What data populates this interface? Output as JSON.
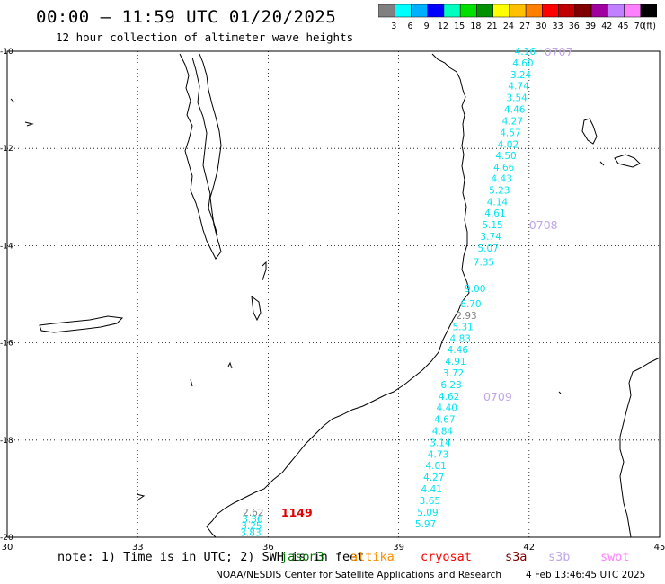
{
  "header": {
    "title": "00:00 – 11:59 UTC 01/20/2025",
    "subtitle": "12 hour collection of altimeter wave heights"
  },
  "scale": {
    "unit": "(ft)",
    "colors": [
      "#808080",
      "#00ffff",
      "#00b0ff",
      "#0000ff",
      "#00ffc0",
      "#00e000",
      "#009000",
      "#ffff00",
      "#ffc000",
      "#ff8000",
      "#ff0000",
      "#c00000",
      "#800000",
      "#a000a0",
      "#c080ff",
      "#ff80ff",
      "#000000"
    ],
    "labels": [
      "3",
      "6",
      "9",
      "12",
      "15",
      "18",
      "21",
      "24",
      "27",
      "30",
      "33",
      "36",
      "39",
      "42",
      "45",
      "70"
    ]
  },
  "axes": {
    "lon_ticks": [
      "30",
      "33",
      "36",
      "39",
      "42",
      "45"
    ],
    "lat_ticks": [
      "-10",
      "-12",
      "-14",
      "-16",
      "-18",
      "-20"
    ],
    "lon_range": [
      30,
      45
    ],
    "lat_range": [
      -20,
      -10
    ]
  },
  "tracks": [
    {
      "label": "0707",
      "label_color": "#c0a8e8",
      "color": "#00e5f0",
      "points": [
        {
          "lon": 42.15,
          "lat": -10.0,
          "v": "4.16"
        },
        {
          "lon": 42.1,
          "lat": -10.24,
          "v": "4.60"
        },
        {
          "lon": 42.05,
          "lat": -10.48,
          "v": "3.24"
        },
        {
          "lon": 42.0,
          "lat": -10.71,
          "v": "4.74"
        },
        {
          "lon": 41.96,
          "lat": -10.95,
          "v": "3.54"
        },
        {
          "lon": 41.91,
          "lat": -11.19,
          "v": "4.46"
        },
        {
          "lon": 41.86,
          "lat": -11.43,
          "v": "4.27"
        },
        {
          "lon": 41.81,
          "lat": -11.67,
          "v": "4.57"
        },
        {
          "lon": 41.76,
          "lat": -11.91,
          "v": "4.02"
        },
        {
          "lon": 41.71,
          "lat": -12.14,
          "v": "4.50"
        },
        {
          "lon": 41.66,
          "lat": -12.38,
          "v": "4.66"
        },
        {
          "lon": 41.61,
          "lat": -12.62,
          "v": "4.43"
        },
        {
          "lon": 41.56,
          "lat": -12.86,
          "v": "5.23"
        },
        {
          "lon": 41.51,
          "lat": -13.1,
          "v": "4.14"
        },
        {
          "lon": 41.46,
          "lat": -13.33,
          "v": "4.61"
        }
      ]
    },
    {
      "label": "0708",
      "label_color": "#c0a8e8",
      "color": "#00e5f0",
      "points": [
        {
          "lon": 41.4,
          "lat": -13.57,
          "v": "5.15"
        },
        {
          "lon": 41.36,
          "lat": -13.81,
          "v": "3.74"
        },
        {
          "lon": 41.3,
          "lat": -14.05,
          "v": "5.07"
        },
        {
          "lon": 41.2,
          "lat": -14.33,
          "v": "7.35"
        },
        {
          "lon": 41.0,
          "lat": -14.88,
          "v": "9.00"
        },
        {
          "lon": 40.9,
          "lat": -15.19,
          "v": "6.70"
        },
        {
          "lon": 40.8,
          "lat": -15.43,
          "v": "2.93",
          "color": "#808080"
        },
        {
          "lon": 40.72,
          "lat": -15.67,
          "v": "5.31"
        },
        {
          "lon": 40.66,
          "lat": -15.91,
          "v": "4.83"
        },
        {
          "lon": 40.6,
          "lat": -16.14,
          "v": "4.46"
        },
        {
          "lon": 40.55,
          "lat": -16.38,
          "v": "4.91"
        },
        {
          "lon": 40.5,
          "lat": -16.62,
          "v": "3.72"
        }
      ]
    },
    {
      "label": "0709",
      "label_color": "#c0a8e8",
      "color": "#00e5f0",
      "points": [
        {
          "lon": 40.45,
          "lat": -16.86,
          "v": "6.23"
        },
        {
          "lon": 40.4,
          "lat": -17.1,
          "v": "4.62"
        },
        {
          "lon": 40.35,
          "lat": -17.33,
          "v": "4.40"
        },
        {
          "lon": 40.3,
          "lat": -17.57,
          "v": "4.67"
        },
        {
          "lon": 40.25,
          "lat": -17.81,
          "v": "4.84"
        },
        {
          "lon": 40.2,
          "lat": -18.05,
          "v": "3.14"
        },
        {
          "lon": 40.15,
          "lat": -18.29,
          "v": "4.73"
        },
        {
          "lon": 40.1,
          "lat": -18.52,
          "v": "4.01"
        },
        {
          "lon": 40.05,
          "lat": -18.76,
          "v": "4.27"
        },
        {
          "lon": 40.0,
          "lat": -19.0,
          "v": "4.41"
        },
        {
          "lon": 39.96,
          "lat": -19.24,
          "v": "3.65"
        },
        {
          "lon": 39.91,
          "lat": -19.48,
          "v": "5.09"
        },
        {
          "lon": 39.86,
          "lat": -19.72,
          "v": "5.97"
        }
      ]
    },
    {
      "label": "1149",
      "label_color": "#e00000",
      "color": "#00e5f0",
      "points": [
        {
          "lon": 35.9,
          "lat": -19.48,
          "v": "2.62",
          "color": "#808080"
        },
        {
          "lon": 35.88,
          "lat": -19.62,
          "v": "3.36"
        },
        {
          "lon": 35.86,
          "lat": -19.76,
          "v": "3.25"
        },
        {
          "lon": 35.84,
          "lat": -19.9,
          "v": "3.83"
        }
      ]
    }
  ],
  "note": "note: 1) Time is in UTC; 2) SWH is in feet",
  "legend": [
    {
      "name": "jason3",
      "color": "#007000"
    },
    {
      "name": "altika",
      "color": "#ff9000"
    },
    {
      "name": "cryosat",
      "color": "#ff0000"
    },
    {
      "name": "s3a",
      "color": "#800000"
    },
    {
      "name": "s3b",
      "color": "#c0a8e8"
    },
    {
      "name": "swot",
      "color": "#ff80ff"
    }
  ],
  "footer": {
    "credit": "NOAA/NESDIS Center for Satellite Applications and Research",
    "timestamp": "4 Feb 13:46:45 UTC 2025"
  }
}
